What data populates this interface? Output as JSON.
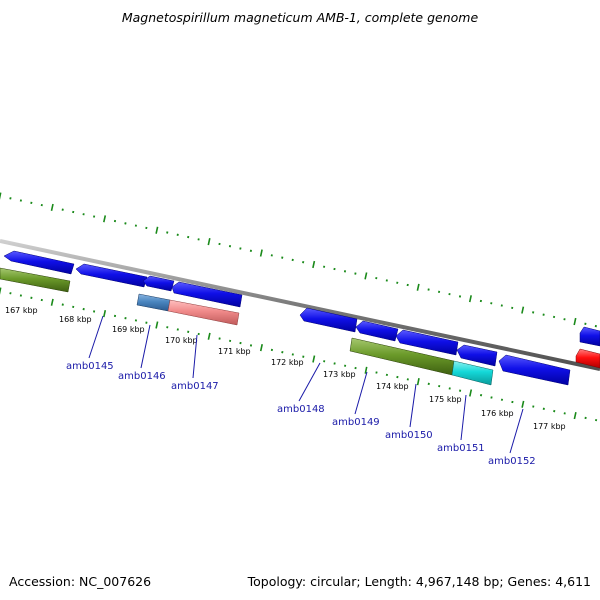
{
  "title": "Magnetospirillum magneticum AMB-1, complete genome",
  "footer": {
    "accession": "Accession: NC_007626",
    "summary": "Topology: circular; Length: 4,967,148 bp; Genes: 4,611"
  },
  "colors": {
    "cds": "#1010e8",
    "green_feature": "#6b9a2a",
    "blue_grey_feature": "#4a86c0",
    "pink_feature": "#f08a8a",
    "cyan_feature": "#14d8d8",
    "red_feature": "#ff1010",
    "backbone": "#8c8c8c",
    "ticks": "#1a8a1a",
    "labels": "#1a1aa8"
  },
  "kbp_labels": [
    "167 kbp",
    "168 kbp",
    "169 kbp",
    "170 kbp",
    "171 kbp",
    "172 kbp",
    "173 kbp",
    "174 kbp",
    "175 kbp",
    "176 kbp",
    "177 kbp"
  ],
  "gene_labels": [
    "amb0145",
    "amb0146",
    "amb0147",
    "amb0148",
    "amb0149",
    "amb0150",
    "amb0151",
    "amb0152"
  ]
}
